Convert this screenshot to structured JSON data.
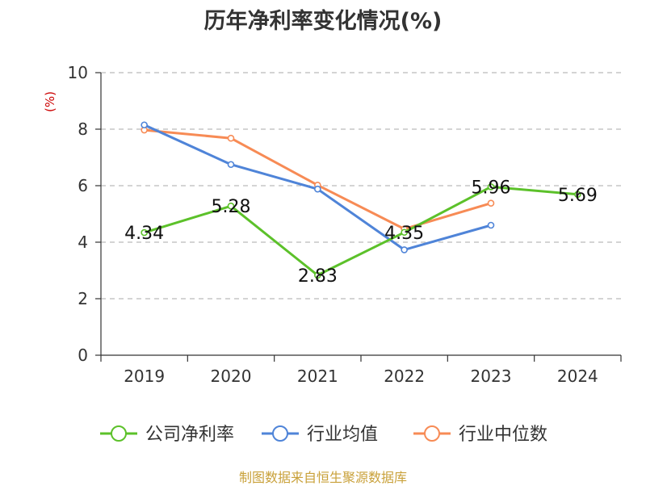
{
  "title": "历年净利率变化情况(%)",
  "source": "制图数据来自恒生聚源数据库",
  "colors": {
    "series": [
      "#5cc12a",
      "#4f84d8",
      "#f78b55"
    ],
    "grid": "#bbbbbb",
    "axis": "#333333"
  },
  "chart_data": {
    "type": "line",
    "ylabel": "(%)",
    "xlabel": "",
    "ylim": [
      0,
      10
    ],
    "yticks": [
      0,
      2,
      4,
      6,
      8,
      10
    ],
    "grid": true,
    "legend_position": "bottom",
    "categories": [
      "2019",
      "2020",
      "2021",
      "2022",
      "2023",
      "2024"
    ],
    "series": [
      {
        "name": "公司净利率",
        "values": [
          4.34,
          5.28,
          2.83,
          4.35,
          5.96,
          5.69
        ],
        "data_labels": [
          "4.34",
          "5.28",
          "2.83",
          "4.35",
          "5.96",
          "5.69"
        ]
      },
      {
        "name": "行业均值",
        "values": [
          8.15,
          6.75,
          5.88,
          3.73,
          4.6,
          null
        ]
      },
      {
        "name": "行业中位数",
        "values": [
          7.97,
          7.68,
          6.02,
          4.47,
          5.38,
          null
        ]
      }
    ]
  }
}
